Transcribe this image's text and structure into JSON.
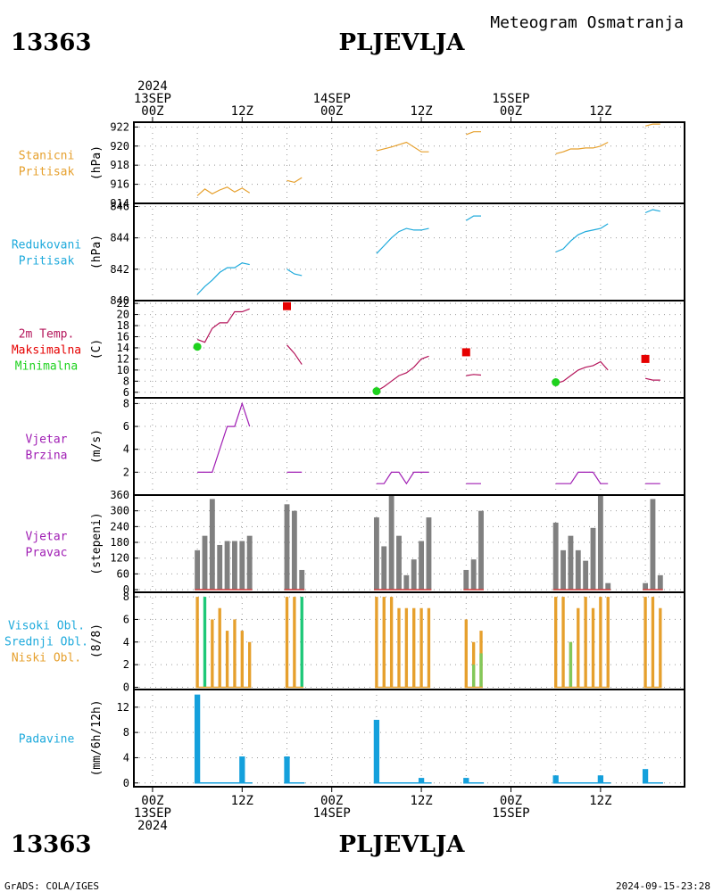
{
  "header": {
    "station_id": "13363",
    "station_name": "PLJEVLJA",
    "product_title": "Meteogram Osmatranja"
  },
  "footer": {
    "credit": "GrADS: COLA/IGES",
    "timestamp": "2024-09-15-23:28"
  },
  "time_axis": {
    "top": [
      {
        "t": 0,
        "lines": [
          "2024",
          "13SEP",
          "00Z"
        ]
      },
      {
        "t": 12,
        "lines": [
          "12Z"
        ]
      },
      {
        "t": 24,
        "lines": [
          "14SEP",
          "00Z"
        ]
      },
      {
        "t": 36,
        "lines": [
          "12Z"
        ]
      },
      {
        "t": 48,
        "lines": [
          "15SEP",
          "00Z"
        ]
      },
      {
        "t": 60,
        "lines": [
          "12Z"
        ]
      }
    ],
    "bottom": [
      {
        "t": 0,
        "lines": [
          "00Z",
          "13SEP",
          "2024"
        ]
      },
      {
        "t": 12,
        "lines": [
          "12Z"
        ]
      },
      {
        "t": 24,
        "lines": [
          "00Z",
          "14SEP"
        ]
      },
      {
        "t": 36,
        "lines": [
          "12Z"
        ]
      },
      {
        "t": 48,
        "lines": [
          "00Z",
          "15SEP"
        ]
      },
      {
        "t": 60,
        "lines": [
          "12Z"
        ]
      }
    ]
  },
  "colors": {
    "pressure_station": "#e6a02d",
    "pressure_reduced": "#1eaadc",
    "temp": "#b4145a",
    "tmax": "#e60000",
    "tmin": "#1ed21e",
    "wind": "#a01eb4",
    "wind_dir_bar": "#808080",
    "wind_dir_base": "#d23c3c",
    "cloud_low": "#e6a02d",
    "cloud_mid": "#1ec878",
    "cloud_high": "#82c85a",
    "precip": "#14a0dc"
  },
  "chart_data": [
    {
      "type": "line",
      "labels": [
        {
          "text": "Stanicni",
          "color": "#e6a02d"
        },
        {
          "text": "Pritisak",
          "color": "#e6a02d"
        }
      ],
      "ylabel": "(hPa)",
      "ylim": [
        914,
        922.5
      ],
      "yticks": [
        914,
        916,
        918,
        920,
        922
      ],
      "series": [
        {
          "color": "#e6a02d",
          "x": [
            6,
            7,
            8,
            9,
            10,
            11,
            12,
            13
          ],
          "y": [
            914.8,
            915.5,
            915.0,
            915.4,
            915.7,
            915.2,
            915.6,
            915.1
          ]
        },
        {
          "color": "#e6a02d",
          "x": [
            18,
            19,
            20
          ],
          "y": [
            916.4,
            916.2,
            916.7
          ]
        },
        {
          "color": "#e6a02d",
          "x": [
            30,
            32,
            34,
            36,
            37
          ],
          "y": [
            919.5,
            919.9,
            920.4,
            919.4,
            919.4
          ]
        },
        {
          "color": "#e6a02d",
          "x": [
            42,
            43,
            44
          ],
          "y": [
            921.2,
            921.5,
            921.5
          ]
        },
        {
          "color": "#e6a02d",
          "x": [
            54,
            55,
            56,
            57,
            58,
            59,
            60,
            61
          ],
          "y": [
            919.2,
            919.4,
            919.7,
            919.7,
            919.8,
            919.8,
            920.0,
            920.4
          ]
        },
        {
          "color": "#e6a02d",
          "x": [
            66,
            67,
            68
          ],
          "y": [
            922.1,
            922.3,
            922.3
          ]
        }
      ]
    },
    {
      "type": "line",
      "labels": [
        {
          "text": "Redukovani",
          "color": "#1eaadc"
        },
        {
          "text": "Pritisak",
          "color": "#1eaadc"
        }
      ],
      "ylabel": "(hPa)",
      "ylim": [
        840,
        846.2
      ],
      "yticks": [
        840,
        842,
        844,
        846
      ],
      "series": [
        {
          "color": "#1eaadc",
          "x": [
            6,
            7,
            8,
            9,
            10,
            11,
            12,
            13
          ],
          "y": [
            840.4,
            840.9,
            841.3,
            841.8,
            842.1,
            842.1,
            842.4,
            842.3
          ]
        },
        {
          "color": "#1eaadc",
          "x": [
            18,
            19,
            20
          ],
          "y": [
            842.0,
            841.7,
            841.6
          ]
        },
        {
          "color": "#1eaadc",
          "x": [
            30,
            31,
            32,
            33,
            34,
            35,
            36,
            37
          ],
          "y": [
            843.0,
            843.5,
            844.0,
            844.4,
            844.6,
            844.5,
            844.5,
            844.6
          ]
        },
        {
          "color": "#1eaadc",
          "x": [
            42,
            43,
            44
          ],
          "y": [
            845.1,
            845.4,
            845.4
          ]
        },
        {
          "color": "#1eaadc",
          "x": [
            54,
            55,
            56,
            57,
            58,
            59,
            60,
            61
          ],
          "y": [
            843.1,
            843.3,
            843.8,
            844.2,
            844.4,
            844.5,
            844.6,
            844.9
          ]
        },
        {
          "color": "#1eaadc",
          "x": [
            66,
            67,
            68
          ],
          "y": [
            845.6,
            845.8,
            845.7
          ]
        }
      ]
    },
    {
      "type": "line",
      "labels": [
        {
          "text": "2m Temp.",
          "color": "#b4145a"
        },
        {
          "text": "Maksimalna",
          "color": "#e60000"
        },
        {
          "text": "Minimalna",
          "color": "#1ed21e"
        }
      ],
      "ylabel": "(C)",
      "ylim": [
        5,
        22.5
      ],
      "yticks": [
        6,
        8,
        10,
        12,
        14,
        16,
        18,
        20,
        22
      ],
      "series": [
        {
          "color": "#b4145a",
          "x": [
            6,
            7,
            8,
            9,
            10,
            11,
            12,
            13
          ],
          "y": [
            15.5,
            15.0,
            17.5,
            18.5,
            18.5,
            20.5,
            20.5,
            21.0
          ]
        },
        {
          "color": "#b4145a",
          "x": [
            18,
            19,
            20
          ],
          "y": [
            14.5,
            13.0,
            11.0
          ]
        },
        {
          "color": "#b4145a",
          "x": [
            30,
            31,
            32,
            33,
            34,
            35,
            36,
            37
          ],
          "y": [
            6.2,
            7.0,
            8.0,
            9.0,
            9.5,
            10.5,
            12.0,
            12.5
          ]
        },
        {
          "color": "#b4145a",
          "x": [
            42,
            43,
            44
          ],
          "y": [
            9.0,
            9.2,
            9.1
          ]
        },
        {
          "color": "#b4145a",
          "x": [
            54,
            55,
            56,
            57,
            58,
            59,
            60,
            61
          ],
          "y": [
            7.6,
            8.0,
            9.0,
            10.0,
            10.5,
            10.8,
            11.5,
            10.0
          ]
        },
        {
          "color": "#b4145a",
          "x": [
            66,
            67,
            68
          ],
          "y": [
            8.5,
            8.2,
            8.2
          ]
        }
      ],
      "markers": [
        {
          "kind": "square",
          "color": "#e60000",
          "x": 18,
          "y": 21.5
        },
        {
          "kind": "square",
          "color": "#e60000",
          "x": 42,
          "y": 13.2
        },
        {
          "kind": "square",
          "color": "#e60000",
          "x": 66,
          "y": 12.0
        },
        {
          "kind": "circle",
          "color": "#1ed21e",
          "x": 6,
          "y": 14.2
        },
        {
          "kind": "circle",
          "color": "#1ed21e",
          "x": 30,
          "y": 6.2
        },
        {
          "kind": "circle",
          "color": "#1ed21e",
          "x": 54,
          "y": 7.8
        }
      ]
    },
    {
      "type": "line",
      "labels": [
        {
          "text": "Vjetar",
          "color": "#a01eb4"
        },
        {
          "text": "Brzina",
          "color": "#a01eb4"
        }
      ],
      "ylabel": "(m/s)",
      "ylim": [
        0,
        8.5
      ],
      "yticks": [
        2,
        4,
        6,
        8
      ],
      "series": [
        {
          "color": "#a01eb4",
          "x": [
            6,
            7,
            8,
            9,
            10,
            11,
            12,
            13
          ],
          "y": [
            2,
            2,
            2,
            4,
            6,
            6,
            8,
            6
          ]
        },
        {
          "color": "#a01eb4",
          "x": [
            18,
            19,
            20
          ],
          "y": [
            2,
            2,
            2
          ]
        },
        {
          "color": "#a01eb4",
          "x": [
            30,
            31,
            32,
            33,
            34,
            35,
            36,
            37
          ],
          "y": [
            1,
            1,
            2,
            2,
            1,
            2,
            2,
            2
          ]
        },
        {
          "color": "#a01eb4",
          "x": [
            42,
            43,
            44
          ],
          "y": [
            1,
            1,
            1
          ]
        },
        {
          "color": "#a01eb4",
          "x": [
            54,
            55,
            56,
            57,
            58,
            59,
            60,
            61
          ],
          "y": [
            1,
            1,
            1,
            2,
            2,
            2,
            1,
            1
          ]
        },
        {
          "color": "#a01eb4",
          "x": [
            66,
            67,
            68
          ],
          "y": [
            1,
            1,
            1
          ]
        }
      ]
    },
    {
      "type": "bar",
      "labels": [
        {
          "text": "Vjetar",
          "color": "#a01eb4"
        },
        {
          "text": "Pravac",
          "color": "#a01eb4"
        }
      ],
      "ylabel": "(stepeni)",
      "ylim": [
        -10,
        360
      ],
      "yticks": [
        0,
        60,
        120,
        180,
        240,
        300,
        360
      ],
      "bar_width": 0.7,
      "series": [
        {
          "color": "#808080",
          "x": [
            6,
            7,
            8,
            9,
            10,
            11,
            12,
            13,
            18,
            19,
            20,
            30,
            31,
            32,
            33,
            34,
            35,
            36,
            37,
            42,
            43,
            44,
            54,
            55,
            56,
            57,
            58,
            59,
            60,
            61,
            66,
            67,
            68
          ],
          "values": [
            150,
            205,
            345,
            170,
            185,
            185,
            185,
            205,
            325,
            300,
            75,
            275,
            165,
            360,
            205,
            55,
            115,
            185,
            275,
            75,
            115,
            300,
            255,
            150,
            205,
            150,
            110,
            235,
            360,
            25,
            25,
            345,
            55
          ]
        }
      ],
      "baseline_segments": [
        [
          6,
          13
        ],
        [
          18,
          20
        ],
        [
          30,
          37
        ],
        [
          42,
          44
        ],
        [
          54,
          61
        ],
        [
          66,
          68
        ]
      ]
    },
    {
      "type": "bar",
      "labels": [
        {
          "text": "Visoki Obl.",
          "color": "#1eaadc"
        },
        {
          "text": "Srednji Obl.",
          "color": "#1eaadc"
        },
        {
          "text": "Niski Obl.",
          "color": "#e6a02d"
        }
      ],
      "ylabel": "(8/8)",
      "ylim": [
        -0.2,
        8.4
      ],
      "yticks": [
        0,
        2,
        4,
        6,
        8
      ],
      "bar_width": 0.4,
      "series": [
        {
          "color": "#e6a02d",
          "x": [
            6,
            8,
            9,
            10,
            11,
            12,
            13,
            18,
            19,
            30,
            31,
            32,
            33,
            34,
            35,
            36,
            37,
            42,
            43,
            44,
            54,
            55,
            56,
            57,
            58,
            59,
            60,
            61,
            66,
            67,
            68
          ],
          "values": [
            8,
            6,
            7,
            5,
            6,
            5,
            4,
            8,
            8,
            8,
            8,
            8,
            7,
            7,
            7,
            7,
            7,
            6,
            4,
            5,
            8,
            8,
            4,
            7,
            8,
            7,
            8,
            8,
            8,
            8,
            7
          ]
        },
        {
          "color": "#1ec878",
          "x": [
            7,
            20
          ],
          "values": [
            8,
            8
          ]
        },
        {
          "color": "#82c85a",
          "x": [
            43,
            44,
            56
          ],
          "values": [
            2,
            3,
            4
          ]
        }
      ],
      "baseline_segments": [
        [
          6,
          13
        ],
        [
          18,
          20
        ],
        [
          30,
          37
        ],
        [
          42,
          44
        ],
        [
          54,
          61
        ],
        [
          66,
          68
        ]
      ]
    },
    {
      "type": "bar",
      "labels": [
        {
          "text": "Padavine",
          "color": "#1eaadc"
        }
      ],
      "ylabel": "(mm/6h/12h)",
      "ylim": [
        -0.6,
        14.8
      ],
      "yticks": [
        0,
        4,
        8,
        12
      ],
      "bar_width": 0.75,
      "series": [
        {
          "color": "#14a0dc",
          "x": [
            6,
            12,
            18,
            30,
            36,
            42,
            54,
            60,
            66
          ],
          "values": [
            14.0,
            4.2,
            4.2,
            10.0,
            0.8,
            0.8,
            1.2,
            1.2,
            2.2
          ]
        }
      ],
      "baseline_segments": [
        [
          6,
          13
        ],
        [
          18,
          20
        ],
        [
          30,
          37
        ],
        [
          42,
          44
        ],
        [
          54,
          61
        ],
        [
          66,
          68
        ]
      ]
    }
  ]
}
